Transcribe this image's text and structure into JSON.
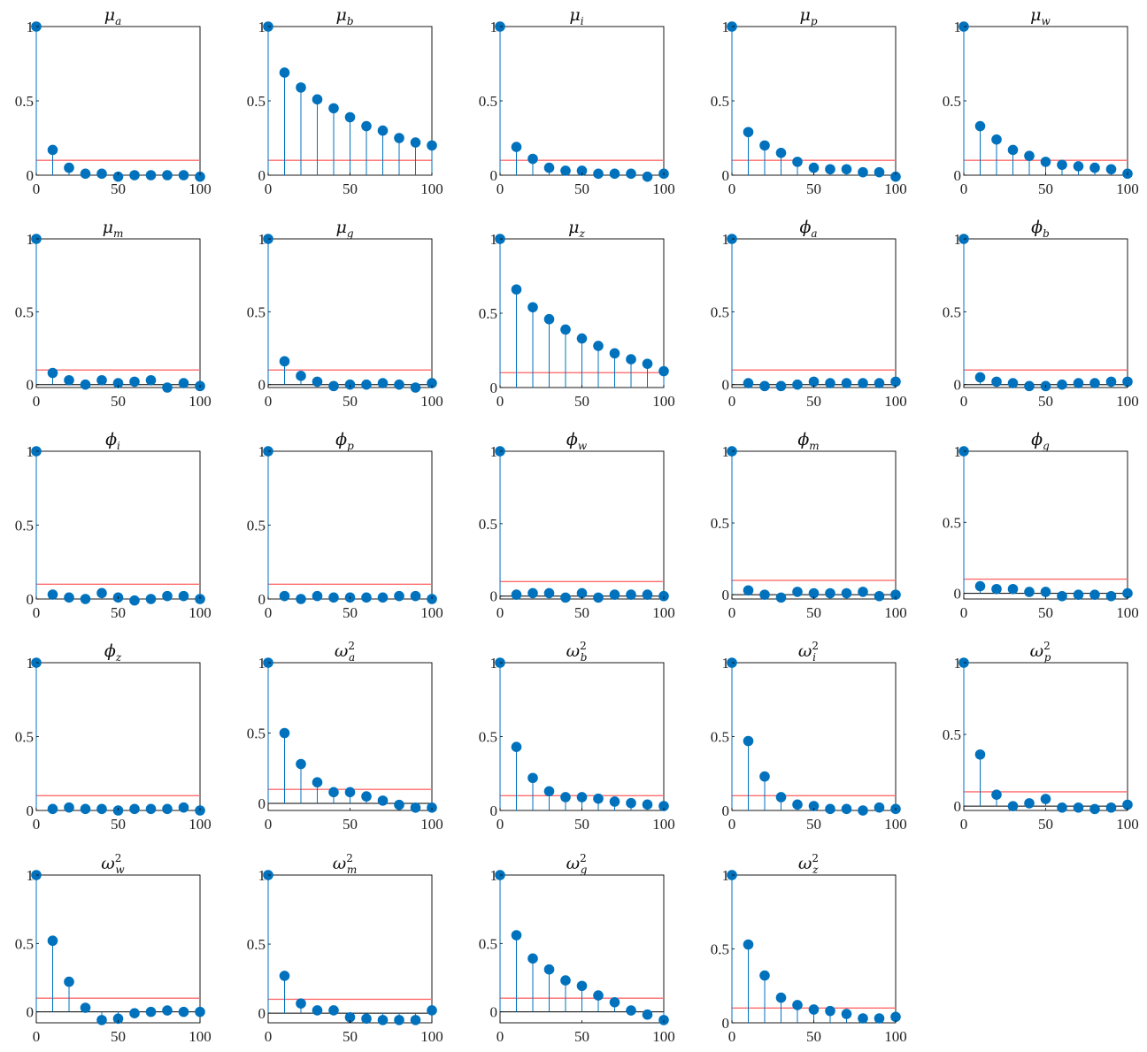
{
  "chart_data": {
    "type": "stem",
    "x": [
      0,
      10,
      20,
      30,
      40,
      50,
      60,
      70,
      80,
      90,
      100
    ],
    "xlim": [
      0,
      100
    ],
    "x_ticks": [
      "0",
      "50",
      "100"
    ],
    "y_ticks": [
      "0",
      "0.5",
      "1"
    ],
    "colors": {
      "stem": "#0072BD",
      "threshold": "#FF6B6B",
      "zero_line": "#000000",
      "axes": "#000000"
    },
    "threshold": 0.1,
    "panels": [
      {
        "symbol": "μ",
        "sub": "a",
        "sup": "",
        "ylim": [
          0,
          1
        ],
        "values": [
          1,
          0.17,
          0.05,
          0.01,
          0.01,
          -0.01,
          0.0,
          0.0,
          0.0,
          0.0,
          -0.01
        ]
      },
      {
        "symbol": "μ",
        "sub": "b",
        "sup": "",
        "ylim": [
          0,
          1
        ],
        "values": [
          1,
          0.69,
          0.59,
          0.51,
          0.45,
          0.39,
          0.33,
          0.3,
          0.25,
          0.22,
          0.2
        ]
      },
      {
        "symbol": "μ",
        "sub": "i",
        "sup": "",
        "ylim": [
          0,
          1
        ],
        "values": [
          1,
          0.19,
          0.11,
          0.05,
          0.03,
          0.03,
          0.01,
          0.01,
          0.01,
          -0.01,
          0.01
        ]
      },
      {
        "symbol": "μ",
        "sub": "p",
        "sup": "",
        "ylim": [
          0,
          1
        ],
        "values": [
          1,
          0.29,
          0.2,
          0.15,
          0.09,
          0.05,
          0.04,
          0.04,
          0.02,
          0.02,
          -0.01
        ]
      },
      {
        "symbol": "μ",
        "sub": "w",
        "sup": "",
        "ylim": [
          0,
          1
        ],
        "values": [
          1,
          0.33,
          0.24,
          0.17,
          0.13,
          0.09,
          0.07,
          0.06,
          0.05,
          0.04,
          0.01
        ]
      },
      {
        "symbol": "μ",
        "sub": "m",
        "sup": "",
        "ylim": [
          -0.02,
          1
        ],
        "values": [
          1,
          0.08,
          0.03,
          0.0,
          0.03,
          0.01,
          0.02,
          0.03,
          -0.02,
          0.01,
          -0.01
        ]
      },
      {
        "symbol": "μ",
        "sub": "g",
        "sup": "",
        "ylim": [
          -0.02,
          1
        ],
        "values": [
          1,
          0.16,
          0.06,
          0.02,
          -0.01,
          0.0,
          0.0,
          0.01,
          0.0,
          -0.02,
          0.01
        ]
      },
      {
        "symbol": "μ",
        "sub": "z",
        "sup": "",
        "ylim": [
          0,
          1
        ],
        "values": [
          1,
          0.66,
          0.54,
          0.46,
          0.39,
          0.33,
          0.28,
          0.23,
          0.19,
          0.16,
          0.11
        ]
      },
      {
        "symbol": "ϕ",
        "sub": "a",
        "sup": "",
        "ylim": [
          -0.02,
          1
        ],
        "values": [
          1,
          0.01,
          -0.01,
          -0.01,
          0.0,
          0.02,
          0.01,
          0.01,
          0.01,
          0.01,
          0.02
        ]
      },
      {
        "symbol": "ϕ",
        "sub": "b",
        "sup": "",
        "ylim": [
          -0.02,
          1
        ],
        "values": [
          1,
          0.05,
          0.02,
          0.01,
          -0.01,
          -0.01,
          0.0,
          0.01,
          0.01,
          0.02,
          0.02
        ]
      },
      {
        "symbol": "ϕ",
        "sub": "i",
        "sup": "",
        "ylim": [
          0,
          1
        ],
        "values": [
          1,
          0.03,
          0.01,
          0.0,
          0.04,
          0.01,
          -0.01,
          0.0,
          0.02,
          0.02,
          0.0
        ]
      },
      {
        "symbol": "ϕ",
        "sub": "p",
        "sup": "",
        "ylim": [
          0,
          1
        ],
        "values": [
          1,
          0.02,
          0.0,
          0.02,
          0.01,
          0.01,
          0.01,
          0.01,
          0.02,
          0.02,
          0.0
        ]
      },
      {
        "symbol": "ϕ",
        "sub": "w",
        "sup": "",
        "ylim": [
          -0.02,
          1
        ],
        "values": [
          1,
          0.01,
          0.02,
          0.02,
          -0.01,
          0.02,
          -0.01,
          0.01,
          0.01,
          0.01,
          0.0
        ]
      },
      {
        "symbol": "ϕ",
        "sub": "m",
        "sup": "",
        "ylim": [
          -0.03,
          1
        ],
        "values": [
          1,
          0.03,
          0.0,
          -0.02,
          0.02,
          0.01,
          0.01,
          0.01,
          0.02,
          -0.01,
          0.0
        ]
      },
      {
        "symbol": "ϕ",
        "sub": "g",
        "sup": "",
        "ylim": [
          -0.04,
          1
        ],
        "values": [
          1,
          0.05,
          0.03,
          0.03,
          0.01,
          0.01,
          -0.02,
          -0.01,
          -0.01,
          -0.02,
          0.0
        ]
      },
      {
        "symbol": "ϕ",
        "sub": "z",
        "sup": "",
        "ylim": [
          0,
          1
        ],
        "values": [
          1,
          0.01,
          0.02,
          0.01,
          0.01,
          0.0,
          0.01,
          0.01,
          0.01,
          0.02,
          0.0
        ]
      },
      {
        "symbol": "ω",
        "sub": "a",
        "sup": "2",
        "ylim": [
          -0.05,
          1
        ],
        "values": [
          1,
          0.5,
          0.28,
          0.15,
          0.08,
          0.08,
          0.05,
          0.02,
          -0.01,
          -0.03,
          -0.03
        ]
      },
      {
        "symbol": "ω",
        "sub": "b",
        "sup": "2",
        "ylim": [
          0,
          1
        ],
        "values": [
          1,
          0.43,
          0.22,
          0.13,
          0.09,
          0.09,
          0.08,
          0.06,
          0.05,
          0.04,
          0.03
        ]
      },
      {
        "symbol": "ω",
        "sub": "i",
        "sup": "2",
        "ylim": [
          0,
          1
        ],
        "values": [
          1,
          0.47,
          0.23,
          0.09,
          0.04,
          0.03,
          0.01,
          0.01,
          0.0,
          0.02,
          0.01
        ]
      },
      {
        "symbol": "ω",
        "sub": "p",
        "sup": "2",
        "ylim": [
          -0.03,
          1
        ],
        "values": [
          1,
          0.36,
          0.08,
          0.0,
          0.02,
          0.05,
          -0.01,
          -0.01,
          -0.02,
          -0.01,
          0.01
        ]
      },
      {
        "symbol": "ω",
        "sub": "w",
        "sup": "2",
        "ylim": [
          -0.08,
          1
        ],
        "values": [
          1,
          0.52,
          0.22,
          0.03,
          -0.06,
          -0.05,
          -0.01,
          0.0,
          0.01,
          0.0,
          0.0
        ]
      },
      {
        "symbol": "ω",
        "sub": "m",
        "sup": "2",
        "ylim": [
          -0.07,
          1
        ],
        "values": [
          1,
          0.27,
          0.07,
          0.02,
          0.02,
          -0.03,
          -0.04,
          -0.05,
          -0.05,
          -0.05,
          0.02
        ]
      },
      {
        "symbol": "ω",
        "sub": "g",
        "sup": "2",
        "ylim": [
          -0.08,
          1
        ],
        "values": [
          1,
          0.56,
          0.39,
          0.31,
          0.23,
          0.19,
          0.12,
          0.07,
          0.01,
          -0.02,
          -0.06
        ]
      },
      {
        "symbol": "ω",
        "sub": "z",
        "sup": "2",
        "ylim": [
          0,
          1
        ],
        "values": [
          1,
          0.53,
          0.32,
          0.17,
          0.12,
          0.09,
          0.08,
          0.06,
          0.03,
          0.03,
          0.04
        ]
      }
    ]
  }
}
